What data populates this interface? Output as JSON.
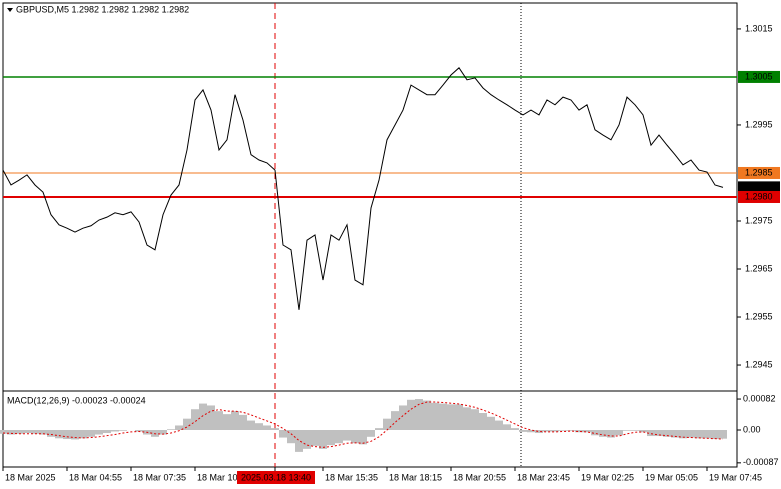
{
  "chart_data": [
    {
      "type": "line",
      "title": "GBPUSD,M5  1.2982 1.2982 1.2982 1.2982",
      "color": "#000000",
      "categories": [
        "18 Mar 2025",
        null,
        null,
        null,
        null,
        null,
        null,
        null,
        "18 Mar 04:55",
        null,
        null,
        null,
        null,
        null,
        null,
        null,
        "18 Mar 07:35",
        null,
        null,
        null,
        null,
        null,
        null,
        null,
        "18 Mar 10",
        null,
        null,
        null,
        null,
        null,
        null,
        null,
        null,
        null,
        "2025.03.18 13:40",
        null,
        null,
        null,
        null,
        null,
        "18 Mar 15:35",
        null,
        null,
        null,
        null,
        null,
        null,
        null,
        "18 Mar 18:15",
        null,
        null,
        null,
        null,
        null,
        null,
        null,
        "18 Mar 20:55",
        null,
        null,
        null,
        null,
        null,
        null,
        null,
        "18 Mar 23:45",
        null,
        null,
        null,
        null,
        null,
        null,
        null,
        "19 Mar 02:25",
        null,
        null,
        null,
        null,
        null,
        null,
        null,
        "19 Mar 05:05",
        null,
        null,
        null,
        null,
        null,
        null,
        null,
        "19 Mar 07:45",
        null,
        null
      ],
      "values": [
        1.29856,
        1.29825,
        1.29835,
        1.29846,
        1.29825,
        1.2981,
        1.29763,
        1.29742,
        1.29735,
        1.29727,
        1.29735,
        1.2974,
        1.29752,
        1.29758,
        1.29767,
        1.29763,
        1.29769,
        1.29748,
        1.297,
        1.2969,
        1.29763,
        1.29804,
        1.29825,
        1.29898,
        1.30002,
        1.30023,
        1.29981,
        1.29898,
        1.29919,
        1.30013,
        1.2996,
        1.29888,
        1.29877,
        1.29871,
        1.29856,
        1.297,
        1.2969,
        1.29565,
        1.2971,
        1.29721,
        1.29627,
        1.29721,
        1.2971,
        1.29742,
        1.29627,
        1.29617,
        1.29777,
        1.29835,
        1.29919,
        1.2995,
        1.29981,
        1.30033,
        1.30023,
        1.30013,
        1.30013,
        1.30033,
        1.30054,
        1.30069,
        1.30044,
        1.30048,
        1.30027,
        1.30013,
        1.30002,
        1.29992,
        1.29981,
        1.29971,
        1.29981,
        1.29971,
        1.30002,
        1.29992,
        1.30008,
        1.30002,
        1.29981,
        1.29992,
        1.2994,
        1.29929,
        1.29919,
        1.2995,
        1.30008,
        1.29992,
        1.29971,
        1.29908,
        1.29929,
        1.29908,
        1.29888,
        1.29867,
        1.29877,
        1.29856,
        1.29852,
        1.29825,
        1.2982
      ],
      "ylim": [
        1.29398,
        1.30204
      ],
      "yticks": [
        1.3015,
        1.2995,
        1.2975,
        1.2965,
        1.2955,
        1.2945
      ],
      "levels": [
        {
          "value": 1.3005,
          "color": "#008000"
        },
        {
          "value": 1.2985,
          "color": "#f07820"
        },
        {
          "value": 1.298,
          "label": "1.2980",
          "color": "#e00000"
        }
      ],
      "last_price": 1.2982,
      "cursor_index": 34
    },
    {
      "type": "macd",
      "title": "MACD(12,26,9) -0.00023 -0.00024",
      "series": [
        {
          "style": "bar",
          "color": "#c0c0c0",
          "values": [
            -0.0001,
            -0.00012,
            -0.0001,
            -8e-05,
            -0.0001,
            -0.00012,
            -0.00018,
            -0.00022,
            -0.00024,
            -0.00025,
            -0.00022,
            -0.00018,
            -0.00012,
            -8e-05,
            -4e-05,
            -2e-05,
            0,
            -4e-05,
            -0.00012,
            -0.00018,
            -0.00012,
            2e-05,
            0.00012,
            0.0003,
            0.00055,
            0.0007,
            0.00065,
            0.0005,
            0.00042,
            0.0005,
            0.0004,
            0.00025,
            0.00018,
            0.00012,
            5e-05,
            -0.0002,
            -0.00035,
            -0.00058,
            -0.0005,
            -0.00042,
            -0.0005,
            -0.0004,
            -0.00035,
            -0.00028,
            -0.00035,
            -0.00038,
            -0.00018,
            5e-05,
            0.0003,
            0.0005,
            0.00065,
            0.0008,
            0.00082,
            0.00078,
            0.00072,
            0.0007,
            0.00068,
            0.00068,
            0.0006,
            0.00055,
            0.00045,
            0.00035,
            0.00025,
            0.00015,
            5e-05,
            -5e-05,
            -6e-05,
            -8e-05,
            -4e-05,
            -4e-05,
            -2e-05,
            -2e-05,
            -6e-05,
            -6e-05,
            -0.00014,
            -0.00018,
            -0.0002,
            -0.00014,
            -2e-05,
            -2e-05,
            -6e-05,
            -0.00016,
            -0.00016,
            -0.00018,
            -0.0002,
            -0.00022,
            -0.0002,
            -0.00022,
            -0.00022,
            -0.00024,
            -0.00023
          ]
        },
        {
          "style": "dotted",
          "color": "#e00000",
          "values": [
            -8e-05,
            -9e-05,
            -0.0001,
            -0.0001,
            -0.0001,
            -0.0001,
            -0.00012,
            -0.00015,
            -0.00018,
            -0.0002,
            -0.00021,
            -0.0002,
            -0.00018,
            -0.00015,
            -0.00012,
            -8e-05,
            -5e-05,
            -4e-05,
            -6e-05,
            -0.0001,
            -0.00011,
            -8e-05,
            -2e-05,
            8e-05,
            0.00022,
            0.00038,
            0.0005,
            0.00054,
            0.0005,
            0.0005,
            0.00047,
            0.0004,
            0.00032,
            0.00024,
            0.00016,
            4e-05,
            -0.0001,
            -0.00028,
            -0.0004,
            -0.00044,
            -0.00046,
            -0.00044,
            -0.0004,
            -0.00035,
            -0.00034,
            -0.00035,
            -0.0003,
            -0.00018,
            0,
            0.0002,
            0.00038,
            0.00055,
            0.00068,
            0.00074,
            0.00074,
            0.00073,
            0.00071,
            0.00069,
            0.00065,
            0.0006,
            0.00053,
            0.00045,
            0.00036,
            0.00026,
            0.00016,
            6e-05,
            0,
            -4e-05,
            -5e-05,
            -5e-05,
            -4e-05,
            -3e-05,
            -4e-05,
            -5e-05,
            -9e-05,
            -0.00013,
            -0.00016,
            -0.00016,
            -0.0001,
            -6e-05,
            -5e-05,
            -0.0001,
            -0.00013,
            -0.00015,
            -0.00017,
            -0.00019,
            -0.0002,
            -0.00021,
            -0.00022,
            -0.00023,
            -0.00024
          ]
        }
      ],
      "ylim": [
        -0.00098,
        0.00098
      ],
      "yticks": [
        0.00082,
        {
          "value": 0,
          "label": "0.00"
        },
        -0.00087
      ]
    }
  ]
}
